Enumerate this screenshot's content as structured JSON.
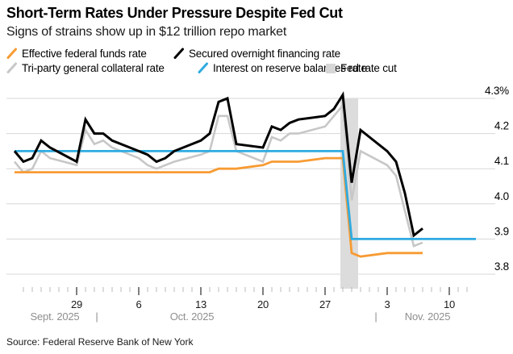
{
  "header": {
    "title": "Short-Term Rates Under Pressure Despite Fed Cut",
    "subtitle": "Signs of strains show up in $12 trillion repo market"
  },
  "legend": [
    {
      "id": "effr",
      "label": "Effective federal funds rate",
      "color": "#f79b33",
      "swatch": "line"
    },
    {
      "id": "sofr",
      "label": "Secured overnight financing rate",
      "color": "#000000",
      "swatch": "line"
    },
    {
      "id": "tgcr",
      "label": "Tri-party general collateral rate",
      "color": "#c7c7c7",
      "swatch": "line"
    },
    {
      "id": "iorb",
      "label": "Interest on reserve balances rate",
      "color": "#2fabe1",
      "swatch": "line"
    },
    {
      "id": "cut",
      "label": "Fed rate cut",
      "color": "#d6d6d6",
      "swatch": "square"
    }
  ],
  "chart_data": {
    "type": "line",
    "title": "Short-Term Rates Under Pressure Despite Fed Cut",
    "xlabel": "",
    "ylabel": "",
    "unit": "%",
    "grid": true,
    "legend_position": "top",
    "y_axis_side": "right",
    "ylim": [
      3.75,
      4.33
    ],
    "x_range": [
      "2025-09-22",
      "2025-11-13"
    ],
    "yticks": [
      {
        "value": 4.3,
        "label": "4.3%"
      },
      {
        "value": 4.2,
        "label": "4.2"
      },
      {
        "value": 4.1,
        "label": "4.1"
      },
      {
        "value": 4.0,
        "label": "4.0"
      },
      {
        "value": 3.9,
        "label": "3.9"
      },
      {
        "value": 3.8,
        "label": "3.8"
      }
    ],
    "xticks": [
      {
        "date": "2025-09-29",
        "label": "29"
      },
      {
        "date": "2025-10-06",
        "label": "6"
      },
      {
        "date": "2025-10-13",
        "label": "13"
      },
      {
        "date": "2025-10-20",
        "label": "20"
      },
      {
        "date": "2025-10-27",
        "label": "27"
      },
      {
        "date": "2025-11-03",
        "label": "3"
      },
      {
        "date": "2025-11-10",
        "label": "10"
      }
    ],
    "month_labels": [
      "Sept. 2025",
      "Oct. 2025",
      "Nov. 2025"
    ],
    "month_separator": "|",
    "fed_rate_cut_band": {
      "from": "2025-10-29",
      "to": "2025-10-30"
    },
    "series": [
      {
        "name": "Tri-party general collateral rate",
        "color": "#c7c7c7",
        "width": 2.6,
        "points": [
          [
            "2025-09-22",
            4.12
          ],
          [
            "2025-09-23",
            4.09
          ],
          [
            "2025-09-24",
            4.1
          ],
          [
            "2025-09-25",
            4.15
          ],
          [
            "2025-09-26",
            4.13
          ],
          [
            "2025-09-29",
            4.11
          ],
          [
            "2025-09-30",
            4.21
          ],
          [
            "2025-10-01",
            4.17
          ],
          [
            "2025-10-02",
            4.18
          ],
          [
            "2025-10-03",
            4.16
          ],
          [
            "2025-10-06",
            4.13
          ],
          [
            "2025-10-07",
            4.11
          ],
          [
            "2025-10-08",
            4.1
          ],
          [
            "2025-10-09",
            4.11
          ],
          [
            "2025-10-10",
            4.12
          ],
          [
            "2025-10-13",
            4.14
          ],
          [
            "2025-10-14",
            4.15
          ],
          [
            "2025-10-15",
            4.25
          ],
          [
            "2025-10-16",
            4.25
          ],
          [
            "2025-10-17",
            4.15
          ],
          [
            "2025-10-20",
            4.12
          ],
          [
            "2025-10-21",
            4.19
          ],
          [
            "2025-10-22",
            4.18
          ],
          [
            "2025-10-23",
            4.2
          ],
          [
            "2025-10-24",
            4.2
          ],
          [
            "2025-10-27",
            4.22
          ],
          [
            "2025-10-28",
            4.25
          ],
          [
            "2025-10-29",
            4.28
          ],
          [
            "2025-10-30",
            4.01
          ],
          [
            "2025-10-31",
            4.15
          ],
          [
            "2025-11-03",
            4.11
          ],
          [
            "2025-11-04",
            4.08
          ],
          [
            "2025-11-05",
            3.98
          ],
          [
            "2025-11-06",
            3.88
          ],
          [
            "2025-11-07",
            3.89
          ]
        ]
      },
      {
        "name": "Effective federal funds rate",
        "color": "#f79b33",
        "width": 2.8,
        "points": [
          [
            "2025-09-22",
            4.09
          ],
          [
            "2025-10-14",
            4.09
          ],
          [
            "2025-10-15",
            4.1
          ],
          [
            "2025-10-17",
            4.1
          ],
          [
            "2025-10-20",
            4.11
          ],
          [
            "2025-10-21",
            4.12
          ],
          [
            "2025-10-24",
            4.12
          ],
          [
            "2025-10-27",
            4.13
          ],
          [
            "2025-10-29",
            4.13
          ],
          [
            "2025-10-30",
            3.86
          ],
          [
            "2025-10-31",
            3.85
          ],
          [
            "2025-11-03",
            3.86
          ],
          [
            "2025-11-05",
            3.86
          ],
          [
            "2025-11-07",
            3.86
          ]
        ]
      },
      {
        "name": "Interest on reserve balances rate",
        "color": "#2fabe1",
        "width": 2.8,
        "points": [
          [
            "2025-09-22",
            4.15
          ],
          [
            "2025-10-29",
            4.15
          ],
          [
            "2025-10-30",
            3.9
          ],
          [
            "2025-11-13",
            3.9
          ]
        ]
      },
      {
        "name": "Secured overnight financing rate",
        "color": "#000000",
        "width": 3,
        "points": [
          [
            "2025-09-22",
            4.15
          ],
          [
            "2025-09-23",
            4.12
          ],
          [
            "2025-09-24",
            4.13
          ],
          [
            "2025-09-25",
            4.18
          ],
          [
            "2025-09-26",
            4.16
          ],
          [
            "2025-09-29",
            4.12
          ],
          [
            "2025-09-30",
            4.24
          ],
          [
            "2025-10-01",
            4.2
          ],
          [
            "2025-10-02",
            4.2
          ],
          [
            "2025-10-03",
            4.18
          ],
          [
            "2025-10-06",
            4.15
          ],
          [
            "2025-10-07",
            4.14
          ],
          [
            "2025-10-08",
            4.12
          ],
          [
            "2025-10-09",
            4.13
          ],
          [
            "2025-10-10",
            4.15
          ],
          [
            "2025-10-13",
            4.18
          ],
          [
            "2025-10-14",
            4.2
          ],
          [
            "2025-10-15",
            4.29
          ],
          [
            "2025-10-16",
            4.3
          ],
          [
            "2025-10-17",
            4.17
          ],
          [
            "2025-10-20",
            4.16
          ],
          [
            "2025-10-21",
            4.22
          ],
          [
            "2025-10-22",
            4.21
          ],
          [
            "2025-10-23",
            4.23
          ],
          [
            "2025-10-24",
            4.24
          ],
          [
            "2025-10-27",
            4.25
          ],
          [
            "2025-10-28",
            4.27
          ],
          [
            "2025-10-29",
            4.31
          ],
          [
            "2025-10-30",
            4.06
          ],
          [
            "2025-10-31",
            4.21
          ],
          [
            "2025-11-03",
            4.15
          ],
          [
            "2025-11-04",
            4.12
          ],
          [
            "2025-11-05",
            4.03
          ],
          [
            "2025-11-06",
            3.91
          ],
          [
            "2025-11-07",
            3.93
          ]
        ]
      }
    ]
  },
  "footer": {
    "source": "Source: Federal Reserve Bank of New York"
  }
}
